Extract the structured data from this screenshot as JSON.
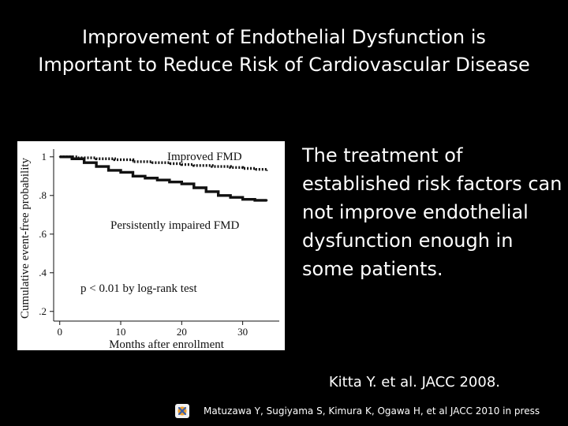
{
  "slide": {
    "title_line1": "Improvement of Endothelial Dysfunction is",
    "title_line2": "Important to Reduce Risk of Cardiovascular Disease",
    "body": "The treatment of established risk factors can not improve endothelial dysfunction enough in some patients.",
    "citation": "Kitta Y. et al. JACC 2008.",
    "footer": "Matuzawa Y, Sugiyama S, Kimura K, Ogawa H, et al JACC 2010 in press",
    "footer_icon": "logo-icon"
  },
  "colors": {
    "background": "#000000",
    "text": "#ffffff",
    "chart_bg": "#ffffff",
    "chart_ink": "#111111"
  },
  "chart_data": {
    "type": "line",
    "title": "",
    "xlabel": "Months after enrollment",
    "ylabel": "Cumulative event-free probability",
    "xlim": [
      -1,
      36
    ],
    "ylim": [
      0.15,
      1.04
    ],
    "xticks": [
      0,
      10,
      20,
      30
    ],
    "xtick_labels": [
      "0",
      "10",
      "20",
      "30"
    ],
    "yticks": [
      0.2,
      0.4,
      0.6,
      0.8,
      1.0
    ],
    "ytick_labels": [
      ".2",
      ".4",
      ".6",
      ".8",
      "1"
    ],
    "grid": false,
    "series": [
      {
        "name": "Improved FMD",
        "style": "dotted",
        "x": [
          0,
          3,
          6,
          9,
          12,
          15,
          18,
          20,
          22,
          25,
          28,
          30,
          32,
          34
        ],
        "y": [
          1.0,
          0.995,
          0.99,
          0.985,
          0.975,
          0.97,
          0.965,
          0.96,
          0.955,
          0.95,
          0.945,
          0.94,
          0.935,
          0.93
        ]
      },
      {
        "name": "Persistently impaired FMD",
        "style": "solid",
        "x": [
          0,
          2,
          4,
          6,
          8,
          10,
          12,
          14,
          16,
          18,
          20,
          22,
          24,
          26,
          28,
          30,
          32,
          34
        ],
        "y": [
          1.0,
          0.99,
          0.97,
          0.95,
          0.93,
          0.92,
          0.9,
          0.89,
          0.88,
          0.87,
          0.86,
          0.84,
          0.82,
          0.8,
          0.79,
          0.78,
          0.775,
          0.775
        ]
      }
    ],
    "annotations": [
      "Improved FMD",
      "Persistently impaired FMD",
      "p < 0.01 by log-rank test"
    ]
  }
}
